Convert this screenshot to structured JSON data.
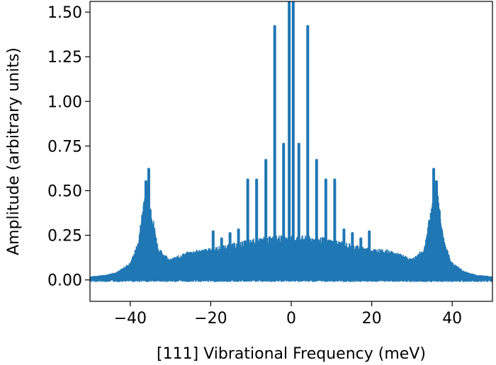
{
  "chart_data": {
    "type": "line",
    "title": "",
    "xlabel": "[111] Vibrational Frequency (meV)",
    "ylabel": "Amplitude (arbitrary units)",
    "xlim": [
      -50,
      50
    ],
    "ylim": [
      -0.12,
      1.56
    ],
    "xticks": [
      -40,
      -20,
      0,
      20,
      40
    ],
    "xtick_labels": [
      "−40",
      "−20",
      "0",
      "20",
      "40"
    ],
    "yticks": [
      0.0,
      0.25,
      0.5,
      0.75,
      1.0,
      1.25,
      1.5
    ],
    "ytick_labels": [
      "0.00",
      "0.25",
      "0.50",
      "0.75",
      "1.00",
      "1.25",
      "1.50"
    ],
    "grid": false,
    "legend": "none",
    "line_color": "#1f77b4",
    "envelope": {
      "x": [
        -50,
        -46,
        -43,
        -40,
        -38,
        -36.5,
        -35.8,
        -35,
        -33,
        -30,
        -27,
        -24,
        -20,
        -16,
        -12,
        -8,
        -4,
        0,
        4,
        8,
        12,
        16,
        20,
        24,
        27,
        30,
        33,
        35,
        35.8,
        36.5,
        38,
        40,
        43,
        46,
        50
      ],
      "y": [
        0.02,
        0.03,
        0.05,
        0.1,
        0.22,
        0.5,
        0.55,
        0.45,
        0.18,
        0.12,
        0.15,
        0.17,
        0.18,
        0.2,
        0.22,
        0.24,
        0.25,
        0.25,
        0.25,
        0.24,
        0.22,
        0.2,
        0.18,
        0.17,
        0.15,
        0.12,
        0.18,
        0.45,
        0.55,
        0.5,
        0.22,
        0.1,
        0.05,
        0.03,
        0.02
      ]
    },
    "peaks": {
      "x": [
        -36.1,
        -35.4,
        -19.4,
        -17.3,
        -15.2,
        -13.1,
        -10.8,
        -8.6,
        -6.3,
        -4.1,
        -1.9,
        -0.5,
        0.5,
        1.9,
        4.1,
        6.3,
        8.6,
        10.8,
        13.1,
        15.2,
        17.3,
        19.4,
        35.4,
        36.1
      ],
      "y": [
        0.55,
        0.62,
        0.27,
        0.23,
        0.26,
        0.28,
        0.56,
        0.56,
        0.67,
        1.42,
        0.76,
        1.56,
        1.56,
        0.76,
        1.42,
        0.67,
        0.56,
        0.56,
        0.28,
        0.26,
        0.23,
        0.27,
        0.62,
        0.55
      ]
    }
  }
}
